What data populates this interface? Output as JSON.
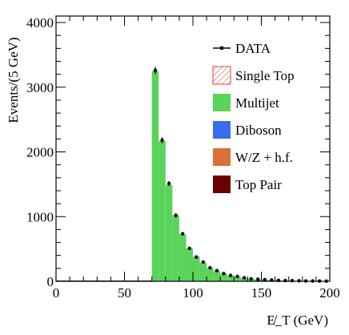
{
  "chart_data": {
    "type": "bar",
    "ylabel": "Events/(5 GeV)",
    "xlabel": "E̸_T (GeV)",
    "xlim": [
      0,
      200
    ],
    "ylim": [
      0,
      4100
    ],
    "x_ticks": [
      0,
      50,
      100,
      150,
      200
    ],
    "y_ticks": [
      0,
      1000,
      2000,
      3000,
      4000
    ],
    "x_tick_labels": [
      "0",
      "50",
      "100",
      "150",
      "200"
    ],
    "y_tick_labels": [
      "0",
      "1000",
      "2000",
      "3000",
      "4000"
    ],
    "legend_position": "top-right",
    "bin_width": 5,
    "bin_edges": [
      70,
      75,
      80,
      85,
      90,
      95,
      100,
      105,
      110,
      115,
      120,
      125,
      130,
      135,
      140,
      145,
      150,
      155,
      160,
      165,
      170,
      175,
      180,
      185,
      190,
      195,
      200
    ],
    "series": [
      {
        "name": "Multijet",
        "color": "#5ad35a",
        "values": [
          3250,
          2170,
          1490,
          1020,
          730,
          510,
          380,
          290,
          210,
          160,
          120,
          90,
          70,
          50,
          40,
          30,
          25,
          20,
          15,
          12,
          10,
          8,
          6,
          5,
          4,
          3
        ]
      },
      {
        "name": "DATA",
        "style": "points",
        "color": "#000000",
        "values": [
          3260,
          2180,
          1510,
          1020,
          735,
          510,
          375,
          300,
          210,
          165,
          120,
          90,
          75,
          55,
          40,
          32,
          25,
          20,
          15,
          12,
          10,
          8,
          6,
          5,
          4,
          3
        ],
        "errors": [
          57,
          47,
          39,
          32,
          27,
          23,
          19,
          17,
          14,
          13,
          11,
          9,
          9,
          7,
          6,
          6,
          5,
          4,
          4,
          3,
          3,
          3,
          2,
          2,
          2,
          2
        ]
      }
    ],
    "legend": [
      {
        "label": "DATA",
        "style": "marker",
        "color": "#000000"
      },
      {
        "label": "Single Top",
        "style": "hatch",
        "color": "#e03c3c"
      },
      {
        "label": "Multijet",
        "style": "fill",
        "color": "#5ad35a"
      },
      {
        "label": "Diboson",
        "style": "fill",
        "color": "#3a6cf0"
      },
      {
        "label": "W/Z + h.f.",
        "style": "fill",
        "color": "#d9703a"
      },
      {
        "label": "Top Pair",
        "style": "fill",
        "color": "#6b0000"
      }
    ]
  }
}
